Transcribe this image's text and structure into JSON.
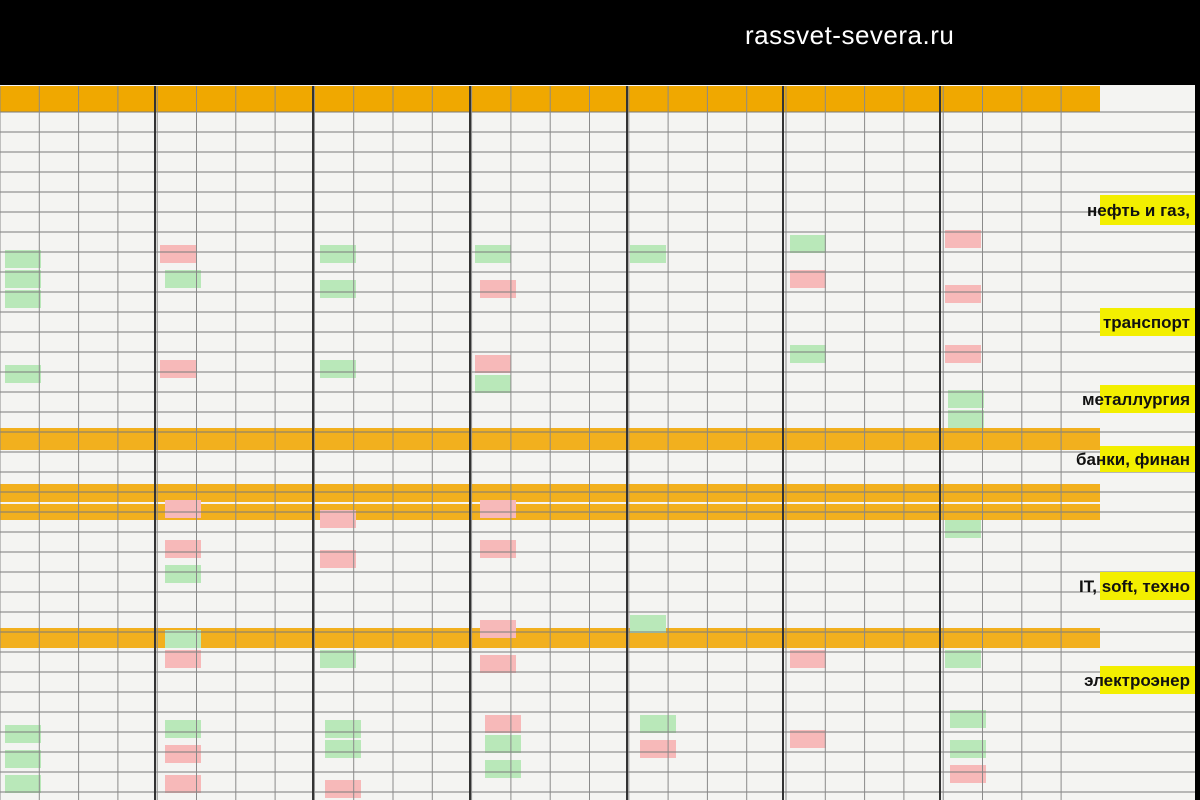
{
  "watermark": "rassvet-severa.ru",
  "sections": [
    {
      "label": "нефть и газ,"
    },
    {
      "label": "транспорт"
    },
    {
      "label": "металлургия"
    },
    {
      "label": "банки, финан"
    },
    {
      "label": "IT, soft, техно"
    },
    {
      "label": "электроэнер"
    }
  ]
}
